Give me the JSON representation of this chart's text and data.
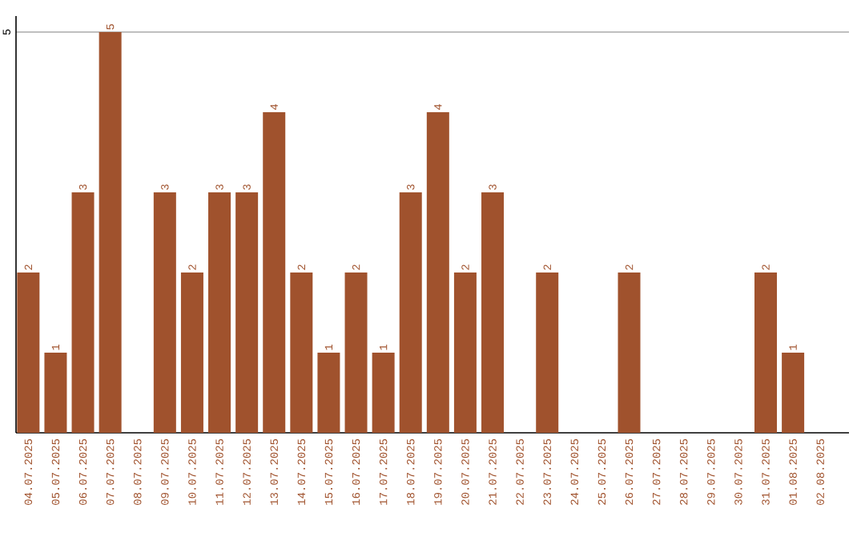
{
  "chart_data": {
    "type": "bar",
    "categories": [
      "04.07.2025",
      "05.07.2025",
      "06.07.2025",
      "07.07.2025",
      "08.07.2025",
      "09.07.2025",
      "10.07.2025",
      "11.07.2025",
      "12.07.2025",
      "13.07.2025",
      "14.07.2025",
      "15.07.2025",
      "16.07.2025",
      "17.07.2025",
      "18.07.2025",
      "19.07.2025",
      "20.07.2025",
      "21.07.2025",
      "22.07.2025",
      "23.07.2025",
      "24.07.2025",
      "25.07.2025",
      "26.07.2025",
      "27.07.2025",
      "28.07.2025",
      "29.07.2025",
      "30.07.2025",
      "31.07.2025",
      "01.08.2025",
      "02.08.2025"
    ],
    "values": [
      2,
      1,
      3,
      5,
      0,
      3,
      2,
      3,
      3,
      4,
      2,
      1,
      2,
      1,
      3,
      4,
      2,
      3,
      0,
      2,
      0,
      0,
      2,
      0,
      0,
      0,
      0,
      2,
      1,
      0
    ],
    "value_labels": [
      "2",
      "1",
      "3",
      "5",
      null,
      "3",
      "2",
      "3",
      "3",
      "4",
      "2",
      "1",
      "2",
      "1",
      "3",
      "4",
      "2",
      "3",
      null,
      "2",
      null,
      null,
      "2",
      null,
      null,
      null,
      null,
      "2",
      "1",
      null
    ],
    "color": "#a0522d",
    "ylim": [
      0,
      5.2
    ],
    "yticks": [
      5
    ],
    "grid": "y"
  }
}
